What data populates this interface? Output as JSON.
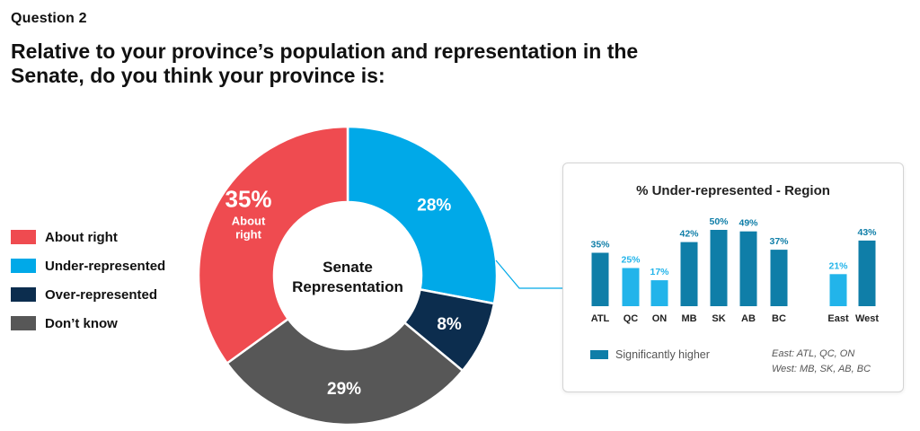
{
  "question_label": "Question 2",
  "question_text": "Relative to your province’s population and representation in the Senate, do you think your province is:",
  "legend": [
    {
      "label": "About right",
      "color": "#ef4b50"
    },
    {
      "label": "Under-represented",
      "color": "#00a9e8"
    },
    {
      "label": "Over-represented",
      "color": "#0c2d4e"
    },
    {
      "label": "Don’t know",
      "color": "#575757"
    }
  ],
  "chart_data": [
    {
      "type": "pie",
      "title": "Senate Representation",
      "donut": true,
      "slices": [
        {
          "label": "Under-represented",
          "value": 28,
          "display": "28%",
          "color": "#00a9e8"
        },
        {
          "label": "Over-represented",
          "value": 8,
          "display": "8%",
          "color": "#0c2d4e"
        },
        {
          "label": "Don’t know",
          "value": 29,
          "display": "29%",
          "color": "#575757"
        },
        {
          "label": "About right",
          "value": 35,
          "display": "35%",
          "sublabel": "About right",
          "color": "#ef4b50"
        }
      ]
    },
    {
      "type": "bar",
      "title": "% Under-represented - Region",
      "categories": [
        "ATL",
        "QC",
        "ON",
        "MB",
        "SK",
        "AB",
        "BC",
        "East",
        "West"
      ],
      "values": [
        35,
        25,
        17,
        42,
        50,
        49,
        37,
        21,
        43
      ],
      "value_labels": [
        "35%",
        "25%",
        "17%",
        "42%",
        "50%",
        "49%",
        "37%",
        "21%",
        "43%"
      ],
      "significantly_higher": [
        true,
        false,
        false,
        true,
        true,
        true,
        true,
        false,
        true
      ],
      "colors": {
        "significant": "#0f7ea8",
        "normal": "#22b4ea"
      },
      "ylim": [
        0,
        55
      ],
      "legend": [
        {
          "label": "Significantly higher",
          "color": "#0f7ea8"
        }
      ],
      "notes": [
        "East: ATL, QC, ON",
        "West: MB, SK, AB, BC"
      ]
    }
  ]
}
